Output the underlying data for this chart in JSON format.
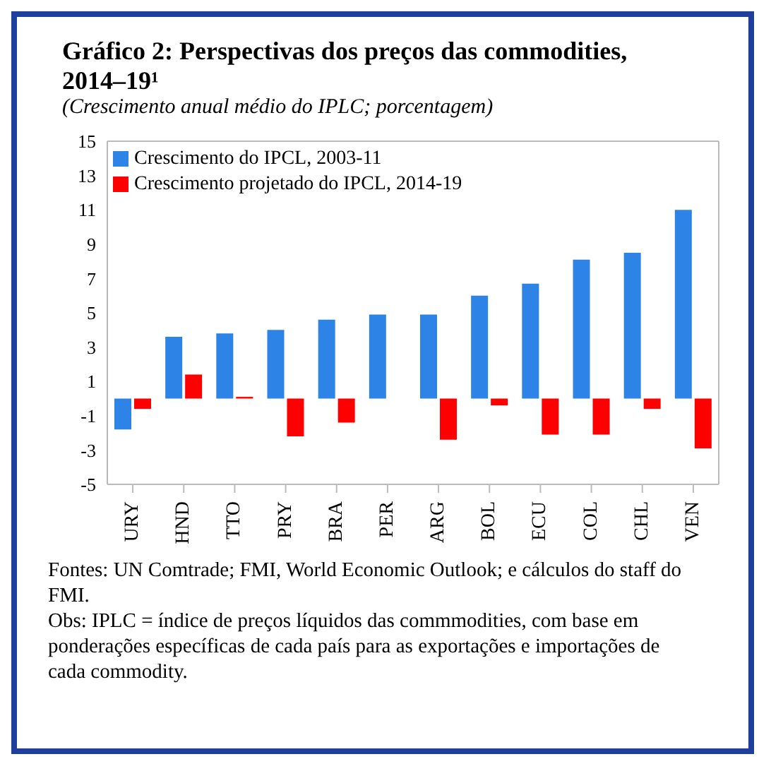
{
  "chart_data": {
    "type": "bar",
    "title": "Gráfico 2: Perspectivas dos preços das commodities, 2014–19¹",
    "subtitle": "(Crescimento anual médio do IPLC; porcentagem)",
    "categories": [
      "URY",
      "HND",
      "TTO",
      "PRY",
      "BRA",
      "PER",
      "ARG",
      "BOL",
      "ECU",
      "COL",
      "CHL",
      "VEN"
    ],
    "series": [
      {
        "name": "Crescimento do IPCL, 2003-11",
        "color": "#2e83e6",
        "values": [
          -1.8,
          3.6,
          3.8,
          4.0,
          4.6,
          4.9,
          4.9,
          6.0,
          6.7,
          8.1,
          8.5,
          11.0
        ]
      },
      {
        "name": "Crescimento projetado do IPCL, 2014-19",
        "color": "#ff0000",
        "values": [
          -0.6,
          1.4,
          0.1,
          -2.2,
          -1.4,
          0,
          -2.4,
          -0.4,
          -2.1,
          -2.1,
          -0.6,
          -2.9
        ]
      }
    ],
    "ylim": [
      -5,
      15
    ],
    "yticks": [
      -5,
      -3,
      -1,
      1,
      3,
      5,
      7,
      9,
      11,
      13,
      15
    ],
    "grid": false,
    "legend": "top left",
    "annotations": [
      "Fontes: UN Comtrade; FMI, World Economic Outlook; e cálculos do staff do FMI.",
      "Obs: IPLC = índice de preços líquidos das commmodities, com base em ponderações específicas de cada país para as exportações e importações de cada commodity."
    ]
  }
}
